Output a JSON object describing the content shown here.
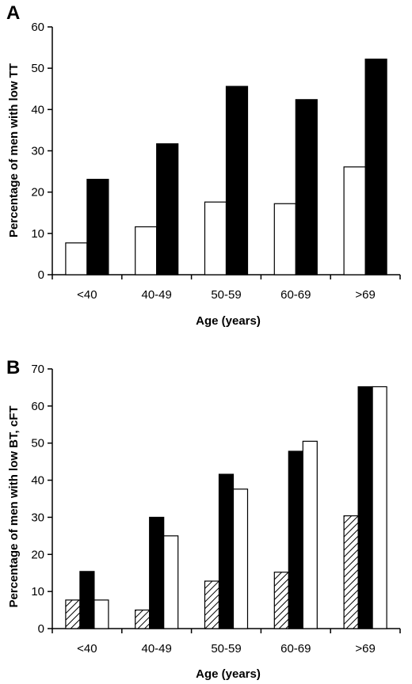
{
  "chart_data": [
    {
      "panel": "A",
      "type": "bar",
      "xlabel": "Age (years)",
      "ylabel": "Percentage of men with low TT",
      "categories": [
        "<40",
        "40-49",
        "50-59",
        "60-69",
        ">69"
      ],
      "ylim": [
        0,
        60
      ],
      "yticks": [
        0,
        10,
        20,
        30,
        40,
        50,
        60
      ],
      "grid": false,
      "series": [
        {
          "fill": "white",
          "values": [
            7.7,
            11.6,
            17.6,
            17.2,
            26.1
          ]
        },
        {
          "fill": "black",
          "values": [
            23.1,
            31.7,
            45.6,
            42.4,
            52.2
          ]
        }
      ]
    },
    {
      "panel": "B",
      "type": "bar",
      "xlabel": "Age (years)",
      "ylabel": "Percentage of men with low BT, cFT",
      "categories": [
        "<40",
        "40-49",
        "50-59",
        "60-69",
        ">69"
      ],
      "ylim": [
        0,
        70
      ],
      "yticks": [
        0,
        10,
        20,
        30,
        40,
        50,
        60,
        70
      ],
      "grid": false,
      "series": [
        {
          "fill": "hatched",
          "values": [
            7.7,
            5.0,
            12.8,
            15.2,
            30.4
          ]
        },
        {
          "fill": "black",
          "values": [
            15.4,
            30.0,
            41.6,
            47.8,
            65.2
          ]
        },
        {
          "fill": "white",
          "values": [
            7.7,
            25.0,
            37.6,
            50.5,
            65.2
          ]
        }
      ]
    }
  ],
  "colors": {
    "ink": "#000000",
    "background": "#ffffff"
  }
}
